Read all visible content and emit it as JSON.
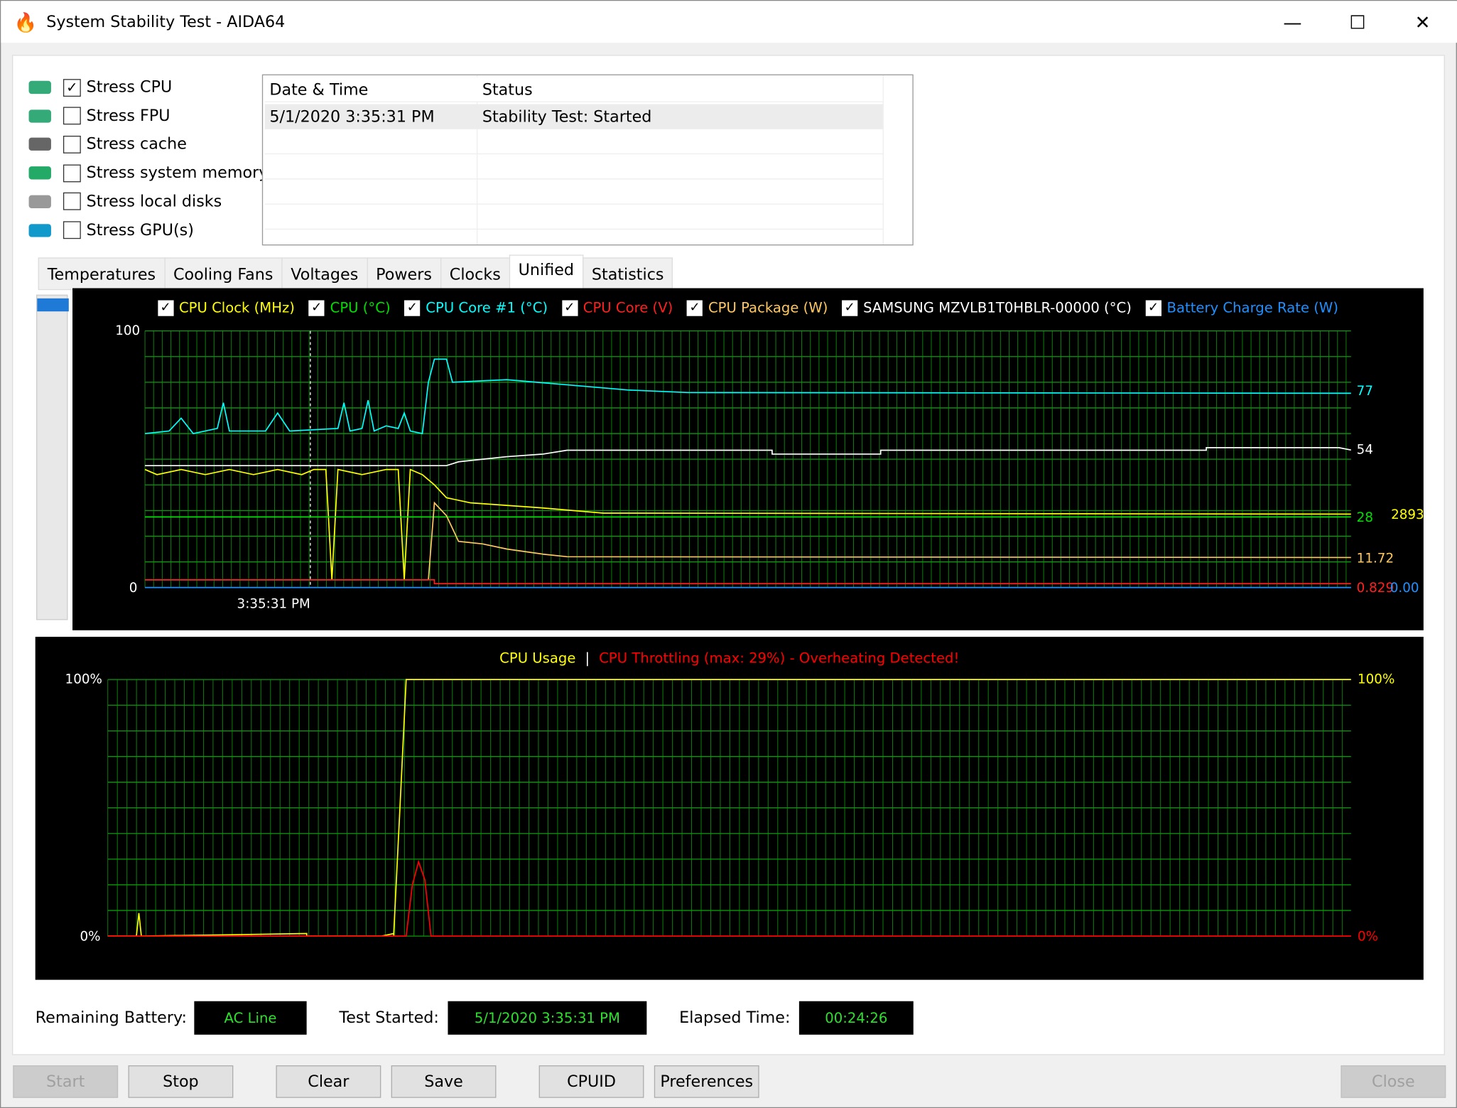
{
  "window": {
    "title": "System Stability Test - AIDA64",
    "minimize_icon": "minimize-icon",
    "maximize_icon": "maximize-icon",
    "close_icon": "close-icon"
  },
  "stress_options": [
    {
      "label": "Stress CPU",
      "checked": true,
      "icon": "cpu-icon"
    },
    {
      "label": "Stress FPU",
      "checked": false,
      "icon": "fpu-icon"
    },
    {
      "label": "Stress cache",
      "checked": false,
      "icon": "cache-icon"
    },
    {
      "label": "Stress system memory",
      "checked": false,
      "icon": "memory-icon"
    },
    {
      "label": "Stress local disks",
      "checked": false,
      "icon": "disk-icon"
    },
    {
      "label": "Stress GPU(s)",
      "checked": false,
      "icon": "gpu-icon"
    }
  ],
  "log": {
    "columns": [
      "Date & Time",
      "Status"
    ],
    "rows": [
      [
        "5/1/2020 3:35:31 PM",
        "Stability Test: Started"
      ]
    ]
  },
  "tabs": [
    "Temperatures",
    "Cooling Fans",
    "Voltages",
    "Powers",
    "Clocks",
    "Unified",
    "Statistics"
  ],
  "active_tab": "Unified",
  "chart_data": [
    {
      "type": "line",
      "ylim": [
        0,
        100
      ],
      "y_ticks": [
        "100",
        "0"
      ],
      "x_tick": "3:35:31 PM",
      "grid": true,
      "legend": [
        {
          "name": "CPU Clock (MHz)",
          "color": "#ffff00",
          "checked": true,
          "current": "2893"
        },
        {
          "name": "CPU (°C)",
          "color": "#00e000",
          "checked": true,
          "current": "28"
        },
        {
          "name": "CPU Core #1 (°C)",
          "color": "#00ffff",
          "checked": true,
          "current": "77"
        },
        {
          "name": "CPU Core (V)",
          "color": "#ff2020",
          "checked": true,
          "current": "0.829"
        },
        {
          "name": "CPU Package (W)",
          "color": "#ffc860",
          "checked": true,
          "current": "11.72"
        },
        {
          "name": "SAMSUNG MZVLB1T0HBLR-00000 (°C)",
          "color": "#ffffff",
          "checked": true,
          "current": "54"
        },
        {
          "name": "Battery Charge Rate (W)",
          "color": "#1e90ff",
          "checked": true,
          "current": "0.00"
        }
      ],
      "series": [
        {
          "name": "CPU Core #1 (°C)",
          "color": "#00ffff",
          "points": [
            [
              0,
              60
            ],
            [
              2,
              61
            ],
            [
              3,
              66
            ],
            [
              4,
              60
            ],
            [
              6,
              62
            ],
            [
              6.5,
              72
            ],
            [
              7,
              61
            ],
            [
              10,
              61
            ],
            [
              11,
              68
            ],
            [
              12,
              61
            ],
            [
              16,
              62
            ],
            [
              16.5,
              72
            ],
            [
              17,
              61
            ],
            [
              18,
              62
            ],
            [
              18.5,
              73
            ],
            [
              19,
              61
            ],
            [
              20,
              63
            ],
            [
              21,
              62
            ],
            [
              21.5,
              68
            ],
            [
              22,
              61
            ],
            [
              23,
              60
            ],
            [
              23.5,
              80
            ],
            [
              24,
              89
            ],
            [
              25,
              89
            ],
            [
              25.5,
              80
            ],
            [
              30,
              81
            ],
            [
              35,
              79
            ],
            [
              40,
              77
            ],
            [
              45,
              76
            ],
            [
              100,
              75.7
            ]
          ]
        },
        {
          "name": "SAMSUNG MZVLB1T0HBLR-00000 (°C)",
          "color": "#ffffff",
          "points": [
            [
              0,
              47.5
            ],
            [
              23,
              47.5
            ],
            [
              25,
              47.5
            ],
            [
              26,
              49
            ],
            [
              28,
              50
            ],
            [
              30,
              51
            ],
            [
              33,
              52
            ],
            [
              35,
              53.5
            ],
            [
              52,
              53.5
            ],
            [
              52,
              52
            ],
            [
              61,
              52
            ],
            [
              61,
              53.5
            ],
            [
              88,
              53.5
            ],
            [
              88,
              54.5
            ],
            [
              99,
              54.5
            ],
            [
              100,
              53.6
            ]
          ]
        },
        {
          "name": "CPU Clock (MHz)",
          "color": "#ffff00",
          "points": [
            [
              0,
              46
            ],
            [
              1,
              44
            ],
            [
              3,
              46
            ],
            [
              5,
              44
            ],
            [
              7,
              46
            ],
            [
              9,
              44
            ],
            [
              11,
              46
            ],
            [
              13,
              44
            ],
            [
              14,
              46
            ],
            [
              15,
              46
            ],
            [
              15.5,
              3
            ],
            [
              16,
              46
            ],
            [
              18,
              44
            ],
            [
              20,
              46
            ],
            [
              21,
              46
            ],
            [
              21.5,
              3
            ],
            [
              22,
              46
            ],
            [
              23,
              44
            ],
            [
              24,
              40
            ],
            [
              25,
              35
            ],
            [
              27,
              33
            ],
            [
              30,
              32
            ],
            [
              33,
              31
            ],
            [
              38,
              29
            ],
            [
              100,
              28.6
            ]
          ]
        },
        {
          "name": "CPU (°C)",
          "color": "#00e000",
          "points": [
            [
              0,
              27.5
            ],
            [
              100,
              27.5
            ]
          ]
        },
        {
          "name": "CPU Package (W)",
          "color": "#ffc860",
          "points": [
            [
              0,
              3
            ],
            [
              23.5,
              3
            ],
            [
              24,
              33
            ],
            [
              25,
              28
            ],
            [
              26,
              18
            ],
            [
              28,
              17
            ],
            [
              30,
              15
            ],
            [
              33,
              13
            ],
            [
              35,
              12
            ],
            [
              100,
              11.7
            ]
          ]
        },
        {
          "name": "CPU Core (V)",
          "color": "#ff2020",
          "points": [
            [
              0,
              3
            ],
            [
              24,
              3
            ],
            [
              24,
              1.5
            ],
            [
              100,
              1.5
            ]
          ]
        },
        {
          "name": "Battery Charge Rate (W)",
          "color": "#1e90ff",
          "points": [
            [
              0,
              0
            ],
            [
              100,
              0
            ]
          ]
        }
      ]
    },
    {
      "type": "line",
      "ylim": [
        0,
        100
      ],
      "title": "CPU Usage",
      "title2": "CPU Throttling (max: 29%) - Overheating Detected!",
      "separator": "|",
      "y_ticks_left": [
        "100%",
        "0%"
      ],
      "y_ticks_right": [
        "100%",
        "0%"
      ],
      "grid": true,
      "series": [
        {
          "name": "CPU Usage",
          "color": "#ffff00",
          "points": [
            [
              0,
              0
            ],
            [
              2.3,
              0
            ],
            [
              2.5,
              9
            ],
            [
              2.7,
              0
            ],
            [
              16,
              1
            ],
            [
              16.5,
              0
            ],
            [
              16.2,
              0
            ],
            [
              16.3,
              0
            ],
            [
              16.2,
              0
            ],
            [
              16.2,
              0
            ],
            [
              16.2,
              0
            ],
            [
              16.3,
              0
            ],
            [
              16.4,
              0
            ],
            [
              16.5,
              0
            ],
            [
              16.4,
              0
            ],
            [
              16.3,
              0
            ],
            [
              16.2,
              0
            ],
            [
              16.1,
              0
            ],
            [
              16.0,
              0
            ],
            [
              16.1,
              0
            ],
            [
              16.2,
              0
            ],
            [
              16.3,
              0
            ],
            [
              16.4,
              0
            ],
            [
              16.2,
              0
            ],
            [
              16.3,
              0
            ],
            [
              16.4,
              0
            ],
            [
              16.5,
              0
            ],
            [
              16.1,
              0
            ],
            [
              16.2,
              0
            ],
            [
              16.2,
              0
            ],
            [
              16.3,
              0
            ],
            [
              16.4,
              0
            ],
            [
              16.5,
              0
            ],
            [
              16.3,
              0
            ],
            [
              16.3,
              0
            ],
            [
              16.3,
              0
            ],
            [
              16.4,
              0
            ],
            [
              16.5,
              0
            ],
            [
              16.5,
              0
            ],
            [
              16.5,
              0
            ],
            [
              16.5,
              0
            ],
            [
              16.2,
              0
            ],
            [
              16.4,
              0
            ],
            [
              16.5,
              0
            ],
            [
              16.2,
              0
            ],
            [
              16.3,
              0
            ],
            [
              16.5,
              0
            ],
            [
              16.5,
              0
            ],
            [
              16.2,
              0
            ],
            [
              16.4,
              0
            ],
            [
              16.3,
              0
            ],
            [
              16.5,
              0
            ],
            [
              16.2,
              0
            ],
            [
              16.3,
              0
            ],
            [
              16.4,
              0
            ],
            [
              16.5,
              0
            ],
            [
              16.6,
              0
            ],
            [
              16.7,
              0
            ],
            [
              16.8,
              0
            ],
            [
              16.9,
              0
            ],
            [
              17,
              0
            ],
            [
              18,
              0
            ],
            [
              20,
              0
            ],
            [
              21,
              0
            ],
            [
              23,
              1
            ],
            [
              16.2,
              0
            ],
            [
              16.5,
              0
            ],
            [
              16.9,
              0
            ],
            [
              17.2,
              0
            ],
            [
              18,
              0
            ],
            [
              19,
              0
            ],
            [
              20,
              0
            ],
            [
              21,
              0
            ],
            [
              22,
              0
            ],
            [
              23,
              0
            ],
            [
              23,
              0
            ],
            [
              23,
              0
            ],
            [
              23,
              0
            ],
            [
              23,
              0
            ],
            [
              23,
              0
            ],
            [
              23,
              0
            ],
            [
              23,
              0
            ],
            [
              23,
              0
            ],
            [
              23,
              0
            ],
            [
              23,
              0
            ],
            [
              23,
              0
            ],
            [
              23,
              0
            ],
            [
              16.2,
              0
            ],
            [
              16.3,
              0
            ],
            [
              16.4,
              0
            ],
            [
              23,
              0
            ],
            [
              23,
              1
            ],
            [
              23.5,
              50
            ],
            [
              24,
              100
            ],
            [
              100,
              100
            ]
          ]
        },
        {
          "name": "CPU Throttling",
          "color": "#ff0000",
          "points": [
            [
              0,
              0
            ],
            [
              24,
              0
            ],
            [
              24.5,
              20
            ],
            [
              25,
              29
            ],
            [
              25.5,
              22
            ],
            [
              26,
              0
            ],
            [
              100,
              0
            ]
          ]
        }
      ]
    }
  ],
  "footer": {
    "battery_label": "Remaining Battery:",
    "battery_value": "AC Line",
    "started_label": "Test Started:",
    "started_value": "5/1/2020 3:35:31 PM",
    "elapsed_label": "Elapsed Time:",
    "elapsed_value": "00:24:26"
  },
  "buttons": {
    "start": "Start",
    "stop": "Stop",
    "clear": "Clear",
    "save": "Save",
    "cpuid": "CPUID",
    "preferences": "Preferences",
    "close": "Close"
  }
}
